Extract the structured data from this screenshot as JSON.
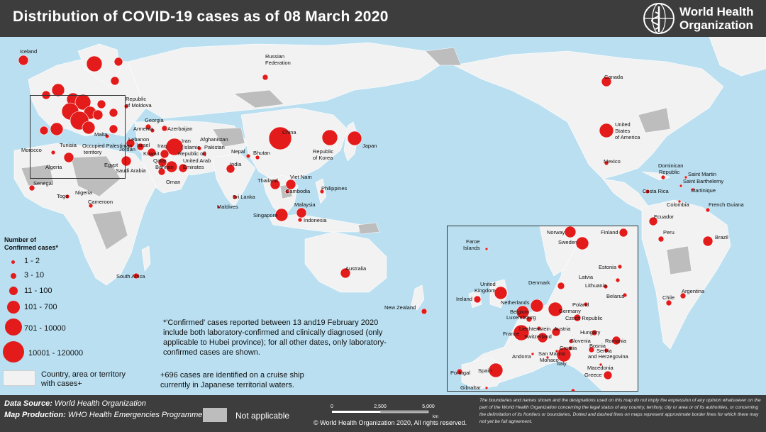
{
  "header": {
    "title": "Distribution of COVID-19 cases as of 08 March 2020",
    "org_line1": "World Health",
    "org_line2": "Organization"
  },
  "colors": {
    "header_bg": "#3d3d3d",
    "ocean": "#b9dff1",
    "land_cases": "#f2f2f2",
    "land_na": "#bdbdbd",
    "case_dot": "#e31b1b"
  },
  "icons": [
    "who-emblem-icon"
  ],
  "labels": {
    "iceland": "Iceland",
    "russia_1": "Russian",
    "russia_2": "Federation",
    "moldova_1": "Republic",
    "moldova_2": "of Moldova",
    "georgia": "Georgia",
    "armenia": "Armenia",
    "azerbaijan": "Azerbaijan",
    "malta": "Malta",
    "lebanon": "Lebanon",
    "morocco": "Morocco",
    "tunisia": "Tunisia",
    "opt_1": "Occupied Palestinian",
    "opt_2": "territory",
    "jordan": "Jordan",
    "israel": "Israel",
    "iraq": "Iraq",
    "iran_1": "Iran",
    "iran_2": "(Islamic",
    "iran_3": "Republic of)",
    "kuwait": "Kuwait",
    "qatar": "Qatar",
    "bahrain": "Bahrain",
    "uae_1": "United Arab",
    "uae_2": "Emirates",
    "oman": "Oman",
    "afghanistan": "Afghanistan",
    "pakistan": "Pakistan",
    "nepal": "Nepal",
    "bhutan": "Bhutan",
    "india": "India",
    "china": "China",
    "korea_1": "Republic",
    "korea_2": "of Korea",
    "japan": "Japan",
    "algeria": "Algeria",
    "egypt": "Egypt",
    "saudi": "Saudi Arabia",
    "senegal": "Senegal",
    "togo": "Togo",
    "nigeria": "Nigeria",
    "cameroon": "Cameroon",
    "south_africa": "South Africa",
    "srilanka": "Sri Lanka",
    "maldives": "Maldives",
    "thailand": "Thailand",
    "vietnam": "Viet Nam",
    "cambodia": "Cambodia",
    "philippines": "Philippines",
    "malaysia": "Malaysia",
    "singapore": "Singapore",
    "indonesia": "Indonesia",
    "australia": "Australia",
    "newzealand": "New Zealand",
    "canada": "Canada",
    "usa_1": "United",
    "usa_2": "States",
    "usa_3": "of America",
    "mexico": "Mexico",
    "dominican_1": "Dominican",
    "dominican_2": "Republic",
    "saint_martin": "Saint Martin",
    "saint_barth": "Saint Barthelemy",
    "martinique": "Martinique",
    "costarica": "Costa Rica",
    "colombia": "Colombia",
    "french_guiana": "French Guiana",
    "ecuador": "Ecuador",
    "peru": "Peru",
    "brazil": "Brazil",
    "chile": "Chile",
    "argentina": "Argentina"
  },
  "inset_labels": {
    "faroe_1": "Faroe",
    "faroe_2": "Islands",
    "norway": "Norway",
    "sweden": "Sweden",
    "finland": "Finland",
    "estonia": "Estonia",
    "latvia": "Latvia",
    "lithuania": "Lithuania",
    "belarus": "Belarus",
    "denmark": "Denmark",
    "uk_1": "United",
    "uk_2": "Kingdom",
    "ireland": "Ireland",
    "netherlands": "Netherlands",
    "belgium": "Belgium",
    "luxembourg": "Luxembourg",
    "germany": "Germany",
    "poland": "Poland",
    "czech": "Czech Republic",
    "france": "France",
    "liechtenstein": "Liechtenstein",
    "austria": "Austria",
    "switzerland": "Switzerland",
    "hungary": "Hungary",
    "slovenia": "Slovenia",
    "croatia": "Croatia",
    "romania": "Romania",
    "bosnia_1": "Bosnia",
    "bosnia_2": "and Herzegovina",
    "serbia": "Serbia",
    "san_marino": "San Marino",
    "monaco": "Monaco",
    "italy": "Italy",
    "andorra": "Andorra",
    "macedonia": "Macedonia",
    "greece": "Greece",
    "portugal": "Portugal",
    "spain": "Spain",
    "gibraltar": "Gibraltar"
  },
  "legend": {
    "title_1": "Number of",
    "title_2": "Confirmed cases*",
    "items": [
      "1 - 2",
      "3 - 10",
      "11 - 100",
      "101 - 700",
      "701 - 10000",
      "10001 - 120000"
    ],
    "country_1": "Country, area or territory",
    "country_2": "with cases+"
  },
  "notes": {
    "note1_1": "*'Confirmed' cases reported between 13 and19 February 2020",
    "note1_2": "include both laboratory-confirmed and clinically diagnosed (only",
    "note1_3": "applicable to Hubei province); for all other dates, only laboratory-",
    "note1_4": "confirmed cases are shown.",
    "note2_1": "+696 cases are identified on a cruise ship",
    "note2_2": "currently in Japanese territorial waters."
  },
  "footer": {
    "data_source_label": "Data Source:",
    "data_source": "World Health Organization",
    "map_production_label": "Map Production:",
    "map_production": "WHO Health Emergencies Programme",
    "na": "Not applicable",
    "scale": [
      "0",
      "2,500",
      "5,000"
    ],
    "scale_unit": "km",
    "copyright": "© World Health Organization 2020, All rights reserved.",
    "disclaimer": "The boundaries and names shown and the designations used on this map do not imply the expression of any opinion whatsoever on the part of the World Health Organization concerning the legal status of any country, territory, city or area or of its authorities, or concerning the delimitation of its frontiers or boundaries. Dotted and dashed lines on maps represent approximate border lines for which there may not yet be full agreement."
  }
}
